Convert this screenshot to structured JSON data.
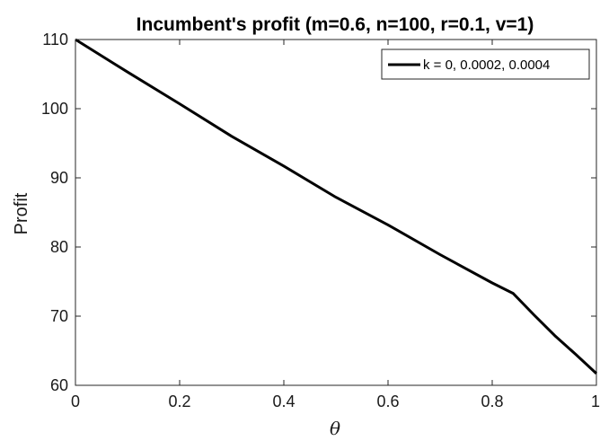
{
  "chart_data": {
    "type": "line",
    "title": "Incumbent's profit (m=0.6, n=100, r=0.1, v=1)",
    "xlabel": "θ",
    "ylabel": "Profit",
    "xlim": [
      0,
      1
    ],
    "ylim": [
      60,
      110
    ],
    "xticks": [
      0,
      0.2,
      0.4,
      0.6,
      0.8,
      1
    ],
    "xtick_labels": [
      "0",
      "0.2",
      "0.4",
      "0.6",
      "0.8",
      "1"
    ],
    "yticks": [
      60,
      70,
      80,
      90,
      100,
      110
    ],
    "ytick_labels": [
      "60",
      "70",
      "80",
      "90",
      "100",
      "110"
    ],
    "grid": false,
    "legend_position": "top-right",
    "series": [
      {
        "name": "k = 0, 0.0002, 0.0004",
        "color": "#000000",
        "x": [
          0,
          0.1,
          0.2,
          0.3,
          0.4,
          0.5,
          0.6,
          0.7,
          0.8,
          0.84,
          0.88,
          0.92,
          0.96,
          1
        ],
        "y": [
          110,
          105.3,
          100.7,
          96.0,
          91.7,
          87.2,
          83.2,
          78.9,
          74.8,
          73.3,
          70.2,
          67.2,
          64.5,
          61.7
        ]
      }
    ]
  }
}
